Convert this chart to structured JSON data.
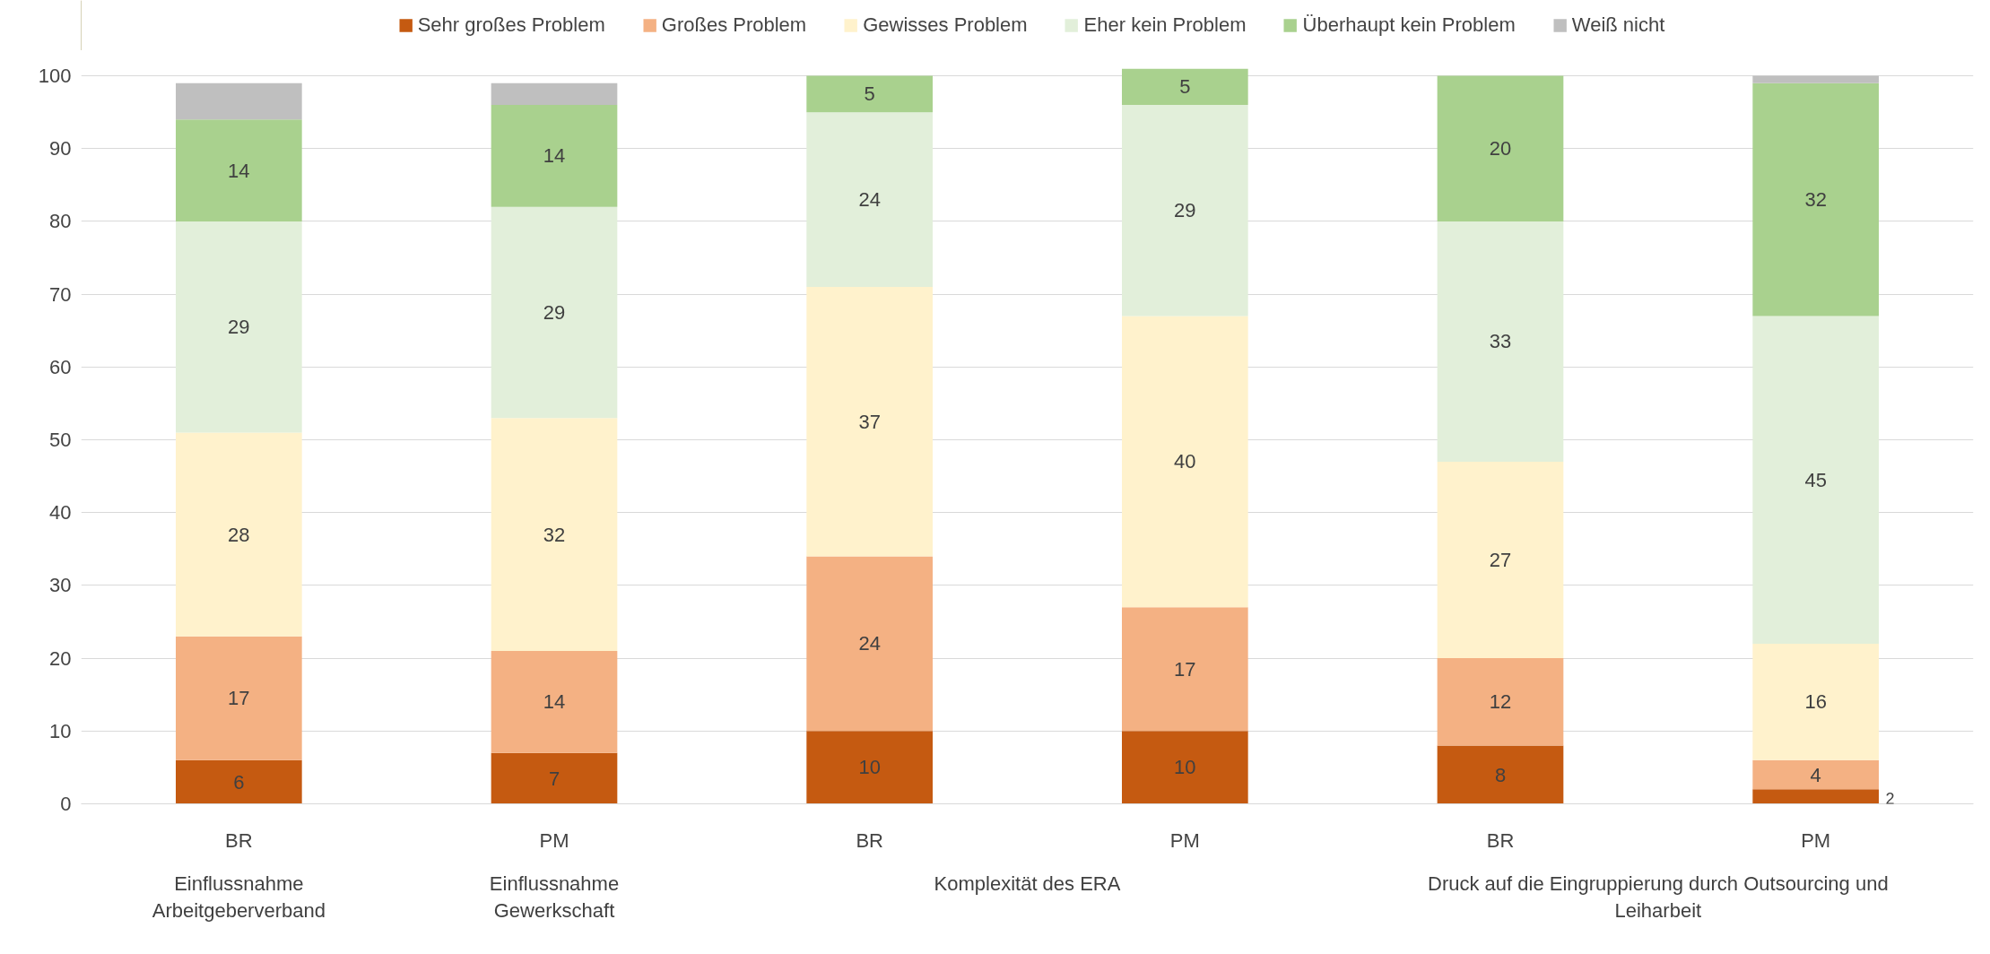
{
  "chart_data": {
    "type": "bar",
    "stacked": true,
    "categories": [
      "BR",
      "PM",
      "BR",
      "PM",
      "BR",
      "PM"
    ],
    "annotations": [
      "Einflussnahme Arbeitgeberverband",
      "Einflussnahme Gewerkschaft",
      "Komplexität des ERA",
      "Druck auf die Eingruppierung durch Outsourcing und Leiharbeit"
    ],
    "series": [
      {
        "name": "Sehr großes Problem",
        "color": "#c55a11",
        "values": [
          6,
          7,
          10,
          10,
          8,
          2
        ],
        "value_labels": [
          "6",
          "7",
          "10",
          "10",
          "8",
          "2"
        ]
      },
      {
        "name": "Großes Problem",
        "color": "#f4b183",
        "values": [
          17,
          14,
          24,
          17,
          12,
          4
        ],
        "value_labels": [
          "17",
          "14",
          "24",
          "17",
          "12",
          "4"
        ]
      },
      {
        "name": "Gewisses Problem",
        "color": "#fff2cc",
        "values": [
          28,
          32,
          37,
          40,
          27,
          16
        ],
        "value_labels": [
          "28",
          "32",
          "37",
          "40",
          "27",
          "16"
        ]
      },
      {
        "name": "Eher kein Problem",
        "color": "#e2efda",
        "values": [
          29,
          29,
          24,
          29,
          33,
          45
        ],
        "value_labels": [
          "29",
          "29",
          "24",
          "29",
          "33",
          "45"
        ]
      },
      {
        "name": "Überhaupt kein Problem",
        "color": "#a9d18e",
        "values": [
          14,
          14,
          5,
          5,
          20,
          32
        ],
        "value_labels": [
          "14",
          "14",
          "5",
          "5",
          "20",
          "32"
        ]
      },
      {
        "name": "Weiß nicht",
        "color": "#bfbfbf",
        "values": [
          5,
          3,
          0,
          0,
          0,
          1
        ],
        "value_labels": [
          null,
          null,
          null,
          null,
          null,
          null
        ]
      }
    ],
    "ylim": [
      0,
      101
    ],
    "yticks": [
      0,
      10,
      20,
      30,
      40,
      50,
      60,
      70,
      80,
      90,
      100
    ],
    "grid": "y",
    "legend": "top"
  }
}
